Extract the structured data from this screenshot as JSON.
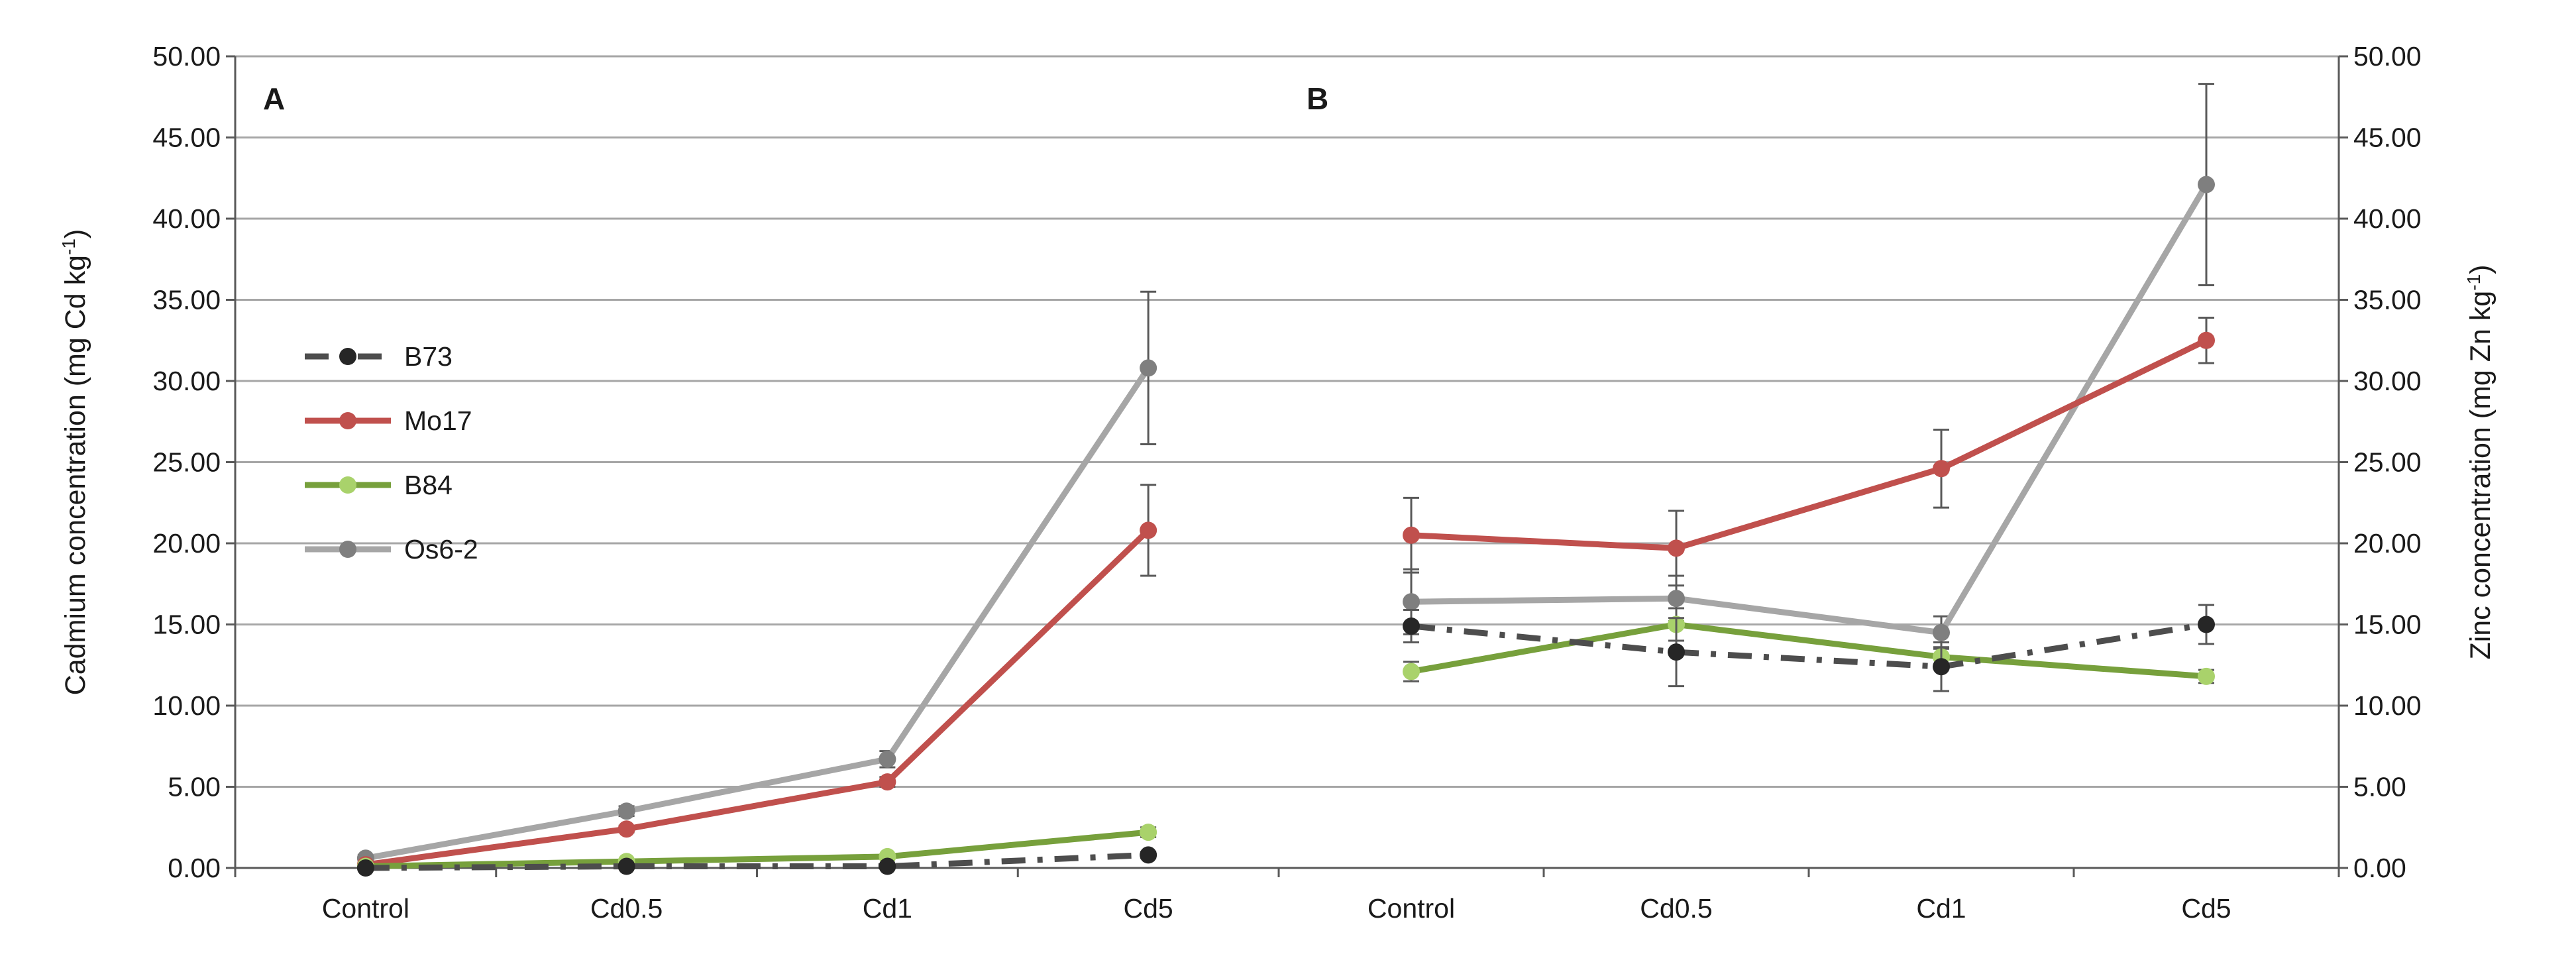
{
  "chart_data": [
    {
      "type": "line",
      "panel_label": "A",
      "categories": [
        "Control",
        "Cd0.5",
        "Cd1",
        "Cd5"
      ],
      "ylabel": "Cadmium concentration (mg Cd kg",
      "ylabel_sup": "-1",
      "ylabel_end": ")",
      "ylim": [
        0,
        50
      ],
      "yticks": [
        "0.00",
        "5.00",
        "10.00",
        "15.00",
        "20.00",
        "25.00",
        "30.00",
        "35.00",
        "40.00",
        "45.00",
        "50.00"
      ],
      "grid": true,
      "legend_position": "left-middle",
      "series": [
        {
          "name": "Os6-2",
          "values": [
            0.6,
            3.5,
            6.7,
            30.8
          ],
          "errors": [
            0.2,
            0.3,
            0.5,
            4.7
          ]
        },
        {
          "name": "Mo17",
          "values": [
            0.2,
            2.4,
            5.3,
            20.8
          ],
          "errors": [
            0.1,
            0.2,
            0.3,
            2.8
          ]
        },
        {
          "name": "B84",
          "values": [
            0.1,
            0.4,
            0.7,
            2.2
          ],
          "errors": [
            0.05,
            0.1,
            0.1,
            0.3
          ]
        },
        {
          "name": "B73",
          "values": [
            0.0,
            0.1,
            0.1,
            0.8
          ],
          "errors": [
            0.0,
            0.05,
            0.05,
            0.2
          ]
        }
      ]
    },
    {
      "type": "line",
      "panel_label": "B",
      "categories": [
        "Control",
        "Cd0.5",
        "Cd1",
        "Cd5"
      ],
      "ylabel": "Zinc concentration (mg Zn kg",
      "ylabel_sup": "-1",
      "ylabel_end": ")",
      "ylim": [
        0,
        50
      ],
      "yticks": [
        "0.00",
        "5.00",
        "10.00",
        "15.00",
        "20.00",
        "25.00",
        "30.00",
        "35.00",
        "40.00",
        "45.00",
        "50.00"
      ],
      "grid": true,
      "series": [
        {
          "name": "Os6-2",
          "values": [
            16.4,
            16.6,
            14.5,
            42.1
          ],
          "errors": [
            2.0,
            1.4,
            1.0,
            6.2
          ]
        },
        {
          "name": "Mo17",
          "values": [
            20.5,
            19.7,
            24.6,
            32.5
          ],
          "errors": [
            2.3,
            2.3,
            2.4,
            1.4
          ]
        },
        {
          "name": "B84",
          "values": [
            12.1,
            15.0,
            13.0,
            11.8
          ],
          "errors": [
            0.6,
            1.0,
            0.6,
            0.4
          ]
        },
        {
          "name": "B73",
          "values": [
            14.9,
            13.3,
            12.4,
            15.0
          ],
          "errors": [
            1.0,
            2.1,
            1.5,
            1.2
          ]
        }
      ]
    }
  ],
  "legend": [
    {
      "name": "B73",
      "color": "#404040",
      "dash": "dashdot"
    },
    {
      "name": "Mo17",
      "color": "#c0504d",
      "dash": "solid"
    },
    {
      "name": "B84",
      "color": "#77a03c",
      "dash": "solid"
    },
    {
      "name": "Os6-2",
      "color": "#a6a6a6",
      "dash": "solid"
    }
  ],
  "series_style": {
    "B73": {
      "line": "#4d4d4d",
      "marker": "#262626",
      "dash": "dashdot"
    },
    "Mo17": {
      "line": "#c0504d",
      "marker": "#c0504d",
      "dash": "solid"
    },
    "B84": {
      "line": "#77a03c",
      "marker": "#a9d26b",
      "dash": "solid"
    },
    "Os6-2": {
      "line": "#a6a6a6",
      "marker": "#7f7f7f",
      "dash": "solid"
    }
  }
}
